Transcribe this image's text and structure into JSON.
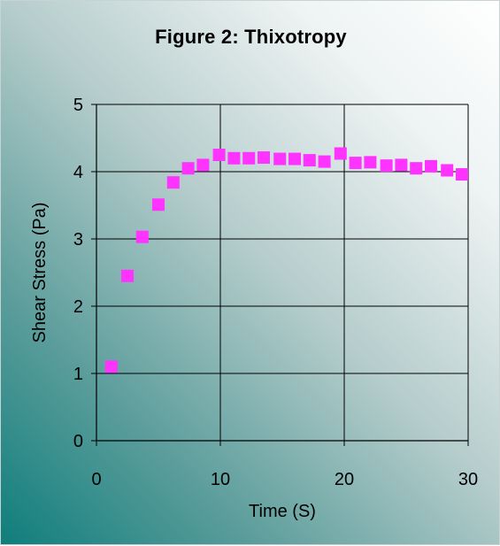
{
  "chart_data": {
    "type": "scatter",
    "title": "Figure 2:  Thixotropy",
    "xlabel": "Time (S)",
    "ylabel": "Shear Stress (Pa)",
    "xlim": [
      0,
      30
    ],
    "ylim": [
      0,
      5
    ],
    "xticks": [
      "0",
      "10",
      "20",
      "30"
    ],
    "yticks": [
      "0",
      "1",
      "2",
      "3",
      "4",
      "5"
    ],
    "grid": true,
    "legend": "none",
    "marker_color": "#ff33ff",
    "series": [
      {
        "x": [
          1.2,
          2.5,
          3.7,
          5.0,
          6.2,
          7.4,
          8.6,
          9.9,
          11.1,
          12.3,
          13.5,
          14.8,
          16.0,
          17.2,
          18.4,
          19.7,
          20.9,
          22.1,
          23.4,
          24.6,
          25.8,
          27.0,
          28.3,
          29.5
        ],
        "y": [
          1.1,
          2.45,
          3.03,
          3.51,
          3.84,
          4.05,
          4.1,
          4.25,
          4.2,
          4.2,
          4.21,
          4.19,
          4.19,
          4.17,
          4.15,
          4.27,
          4.13,
          4.14,
          4.09,
          4.1,
          4.05,
          4.08,
          4.02,
          3.96
        ]
      }
    ]
  }
}
